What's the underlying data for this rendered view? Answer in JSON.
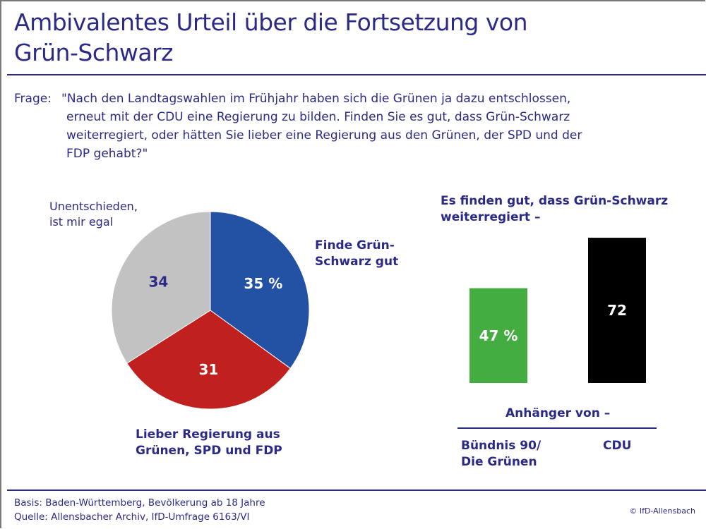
{
  "header": {
    "title_line1": "Ambivalentes Urteil über die Fortsetzung von",
    "title_line2": "Grün-Schwarz"
  },
  "question": {
    "label": "Frage:",
    "lines": [
      "\"Nach den Landtagswahlen im Frühjahr haben sich die Grünen ja dazu entschlossen,",
      "erneut mit der CDU eine Regierung zu bilden. Finden Sie es gut, dass Grün-Schwarz",
      "weiterregiert, oder hätten Sie lieber eine Regierung aus den Grünen, der SPD und der",
      "FDP gehabt?\""
    ]
  },
  "chart_data": [
    {
      "type": "pie",
      "title": "",
      "unit": "%",
      "start": "12 o'clock, clockwise",
      "slices": [
        {
          "label_line1": "Finde Grün-",
          "label_line2": "Schwarz gut",
          "value": 35,
          "value_label": "35 %",
          "color": "#2352a5",
          "value_color": "#ffffff"
        },
        {
          "label_line1": "Lieber Regierung aus",
          "label_line2": "Grünen, SPD und FDP",
          "value": 31,
          "value_label": "31",
          "color": "#c0201e",
          "value_color": "#ffffff"
        },
        {
          "label_line1": "Unentschieden,",
          "label_line2": "ist mir egal",
          "value": 34,
          "value_label": "34",
          "color": "#c2c2c2",
          "value_color": "#2b2a86"
        }
      ]
    },
    {
      "type": "bar",
      "title_line1": "Es finden gut, dass Grün-Schwarz",
      "title_line2": "weiterregiert –",
      "xlabel": "Anhänger von –",
      "ylabel": "",
      "ylim": [
        0,
        100
      ],
      "unit": "%",
      "grid": false,
      "categories": [
        "Bündnis 90/ Die Grünen",
        "CDU"
      ],
      "category_lines": [
        [
          "Bündnis 90/",
          "Die Grünen"
        ],
        [
          "CDU"
        ]
      ],
      "values": [
        47,
        72
      ],
      "value_labels": [
        "47 %",
        "72"
      ],
      "colors": [
        "#43ad42",
        "#000000"
      ]
    }
  ],
  "footer": {
    "basis": "Basis: Baden-Württemberg, Bevölkerung ab 18 Jahre",
    "source": "Quelle: Allensbacher Archiv, IfD-Umfrage 6163/VI",
    "copyright": "© IfD-Allensbach"
  },
  "colors": {
    "text": "#2b2a86",
    "frame": "#7a7a7a"
  }
}
